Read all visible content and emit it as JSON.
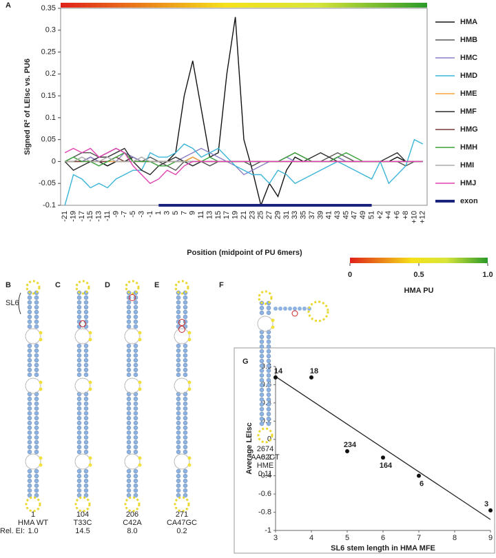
{
  "chart_data": [
    {
      "type": "line",
      "panel": "A",
      "ylabel": "Signed R² of LEIsc vs. PU6",
      "xlabel": "Position  (midpoint of PU 6mers)",
      "categories": [
        "-21",
        "-19",
        "-17",
        "-15",
        "-13",
        "-11",
        "-9",
        "-7",
        "-5",
        "-3",
        "-1",
        "1",
        "3",
        "5",
        "7",
        "9",
        "11",
        "13",
        "15",
        "17",
        "19",
        "21",
        "23",
        "25",
        "27",
        "29",
        "31",
        "33",
        "35",
        "37",
        "39",
        "41",
        "43",
        "45",
        "47",
        "49",
        "51",
        "+2",
        "+4",
        "+6",
        "+8",
        "+10",
        "+12"
      ],
      "ylim": [
        -0.1,
        0.35
      ],
      "yticks": [
        0.35,
        0.3,
        0.25,
        0.2,
        0.15,
        0.1,
        0.05,
        0,
        -0.05,
        -0.1
      ],
      "series": [
        {
          "name": "HMA",
          "color": "#111111",
          "values": [
            0,
            0,
            0,
            0.01,
            0,
            -0.01,
            0,
            0,
            0.01,
            0,
            0,
            0,
            0,
            0.02,
            0.15,
            0.23,
            0.12,
            0.01,
            0.02,
            0.2,
            0.33,
            0.05,
            -0.02,
            -0.1,
            -0.05,
            -0.08,
            -0.02,
            0.01,
            0,
            0,
            0,
            0,
            0.01,
            0,
            0,
            0,
            0,
            0,
            0,
            0.01,
            0,
            0,
            0
          ]
        },
        {
          "name": "HMB",
          "color": "#555555",
          "values": [
            0,
            0.01,
            0.02,
            0.02,
            0.01,
            0.02,
            0.03,
            0.02,
            0.01,
            0,
            0.01,
            0,
            -0.01,
            -0.02,
            0,
            0.01,
            0,
            -0.01,
            0,
            0,
            0,
            0,
            -0.01,
            0,
            0,
            0,
            0.01,
            0.02,
            0.01,
            0,
            0,
            0.01,
            0.02,
            0.01,
            0,
            0,
            0,
            0,
            0,
            0,
            -0.01,
            0,
            0
          ]
        },
        {
          "name": "HMC",
          "color": "#8a7fc8",
          "values": [
            0,
            0,
            0,
            0.01,
            0,
            0,
            0,
            0.02,
            0.01,
            0,
            0,
            0,
            0,
            0,
            0.01,
            0.02,
            0.03,
            0.02,
            0.01,
            0,
            -0.01,
            -0.03,
            -0.02,
            -0.01,
            0,
            0,
            0.01,
            0,
            0,
            0,
            0,
            0,
            0.01,
            0,
            0,
            0,
            0,
            0,
            0,
            0,
            0,
            0,
            0
          ]
        },
        {
          "name": "HMD",
          "color": "#3ab5d8",
          "values": [
            -0.1,
            -0.03,
            -0.04,
            -0.06,
            -0.05,
            -0.06,
            -0.04,
            -0.03,
            -0.02,
            -0.02,
            0.02,
            0.01,
            0.01,
            0.02,
            0.04,
            0.03,
            0.01,
            0.02,
            0.03,
            0.01,
            -0.01,
            -0.02,
            -0.03,
            -0.03,
            -0.05,
            -0.02,
            -0.03,
            -0.05,
            -0.04,
            -0.03,
            -0.02,
            -0.01,
            0,
            -0.01,
            -0.02,
            -0.03,
            -0.04,
            0,
            -0.05,
            -0.03,
            -0.01,
            0.05,
            0.04
          ]
        },
        {
          "name": "HME",
          "color": "#f5a23a",
          "values": [
            0,
            0,
            0,
            0,
            0,
            0,
            0,
            0,
            0,
            0,
            0,
            0,
            0,
            0,
            0,
            0.01,
            0,
            0,
            0,
            0,
            0,
            0,
            0,
            0,
            0,
            0,
            0,
            0,
            0,
            0,
            0,
            0,
            0,
            0,
            0,
            0,
            0,
            0,
            0,
            0,
            0,
            0,
            0
          ]
        },
        {
          "name": "HMF",
          "color": "#2a2a2a",
          "values": [
            0,
            -0.02,
            -0.01,
            0,
            0.01,
            0.01,
            0.02,
            0.03,
            0,
            -0.02,
            -0.03,
            -0.01,
            0,
            0.01,
            0,
            -0.01,
            0,
            0,
            0,
            0,
            0,
            0,
            0,
            0,
            0,
            0,
            0,
            0,
            0,
            0.01,
            0.02,
            0.01,
            0,
            0,
            0,
            0,
            0,
            0,
            0.01,
            0.02,
            0,
            0,
            0
          ]
        },
        {
          "name": "HMG",
          "color": "#7a3a3a",
          "values": [
            0,
            0,
            0,
            0,
            0,
            0,
            0.01,
            0,
            0,
            0,
            0,
            0,
            0,
            0,
            0,
            0,
            0,
            0,
            0,
            0,
            0,
            0,
            0,
            0,
            0,
            0,
            0,
            0,
            0,
            0,
            0,
            0,
            0,
            0,
            0,
            0,
            0,
            0,
            0,
            0,
            0,
            0,
            0
          ]
        },
        {
          "name": "HMH",
          "color": "#3aa03a",
          "values": [
            0,
            0.01,
            0,
            0,
            -0.01,
            0,
            0.01,
            0.02,
            0,
            0,
            0,
            -0.01,
            -0.01,
            0,
            0,
            0,
            0,
            0.01,
            0,
            0,
            0,
            0,
            0,
            0,
            0,
            0,
            0.01,
            0.02,
            0.01,
            0,
            0,
            0,
            0.01,
            0.02,
            0.01,
            0,
            0,
            0,
            0,
            0,
            0,
            0,
            0
          ]
        },
        {
          "name": "HMI",
          "color": "#aaaaaa",
          "values": [
            0,
            0,
            0.01,
            0,
            0,
            0.01,
            0,
            0,
            0,
            0.01,
            0,
            0,
            0,
            0,
            0,
            0,
            0,
            0,
            0,
            0,
            0,
            0,
            0,
            0,
            0,
            0,
            0,
            0,
            0,
            0,
            0,
            0,
            0,
            0,
            0,
            0,
            0,
            0,
            0,
            0,
            0,
            0,
            0
          ]
        },
        {
          "name": "HMJ",
          "color": "#e040b0",
          "values": [
            0.02,
            0.03,
            0.02,
            0.03,
            0.01,
            0.02,
            0.03,
            0.02,
            -0.01,
            -0.03,
            -0.05,
            -0.04,
            -0.02,
            -0.03,
            -0.01,
            0,
            0,
            0,
            0,
            0,
            0,
            0,
            0,
            0,
            0,
            0,
            0,
            0,
            0,
            0,
            0,
            0,
            0,
            0,
            0,
            0,
            0,
            0,
            0,
            0,
            0,
            0,
            0
          ]
        },
        {
          "name": "exon",
          "color": "#1a237e",
          "values": [
            null,
            null,
            null,
            null,
            null,
            null,
            null,
            null,
            null,
            null,
            null,
            -0.1,
            -0.1,
            -0.1,
            -0.1,
            -0.1,
            -0.1,
            -0.1,
            -0.1,
            -0.1,
            -0.1,
            -0.1,
            -0.1,
            -0.1,
            -0.1,
            -0.1,
            -0.1,
            -0.1,
            -0.1,
            -0.1,
            -0.1,
            -0.1,
            -0.1,
            -0.1,
            -0.1,
            -0.1,
            -0.1,
            null,
            null,
            null,
            null,
            null,
            null
          ]
        }
      ],
      "colorbar": {
        "label": "HMA PU",
        "ticks": [
          0,
          0.5,
          {
            "value": 1,
            "label": "1.0"
          }
        ]
      }
    },
    {
      "type": "scatter",
      "panel": "G",
      "xlabel": "SL6 stem length in HMA MFE",
      "ylabel": "Average LEIsc",
      "x": [
        3,
        4,
        5,
        6,
        7,
        9
      ],
      "y": [
        0.68,
        0.68,
        -0.13,
        -0.2,
        -0.4,
        -0.78
      ],
      "point_labels": [
        "14",
        "18",
        "234",
        "164",
        "6",
        "3"
      ],
      "trendline": {
        "x": [
          3,
          9
        ],
        "y": [
          0.69,
          -0.88
        ]
      },
      "xlim": [
        3,
        9
      ],
      "xticks": [
        3,
        4,
        5,
        6,
        7,
        8,
        9
      ],
      "ylim": [
        -1,
        0.8
      ],
      "yticks": [
        0.8,
        0.6,
        0.4,
        0.2,
        0,
        -0.2,
        -0.4,
        -0.6,
        -0.8,
        -1
      ]
    }
  ],
  "structures": {
    "row_label": "Rel. EI:",
    "stem_label": "SL6",
    "items": [
      {
        "panel": "B",
        "id": "1",
        "mutation": "HMA WT",
        "ei": "1.0"
      },
      {
        "panel": "C",
        "id": "104",
        "mutation": "T33C",
        "ei": "14.5"
      },
      {
        "panel": "D",
        "id": "206",
        "mutation": "C42A",
        "ei": "8.0"
      },
      {
        "panel": "E",
        "id": "271",
        "mutation": "CA47GC",
        "ei": "0.2"
      },
      {
        "panel": "F",
        "id": "2674",
        "mutation": "AA62CT",
        "gene": "HME",
        "ei": "0.11"
      }
    ]
  }
}
